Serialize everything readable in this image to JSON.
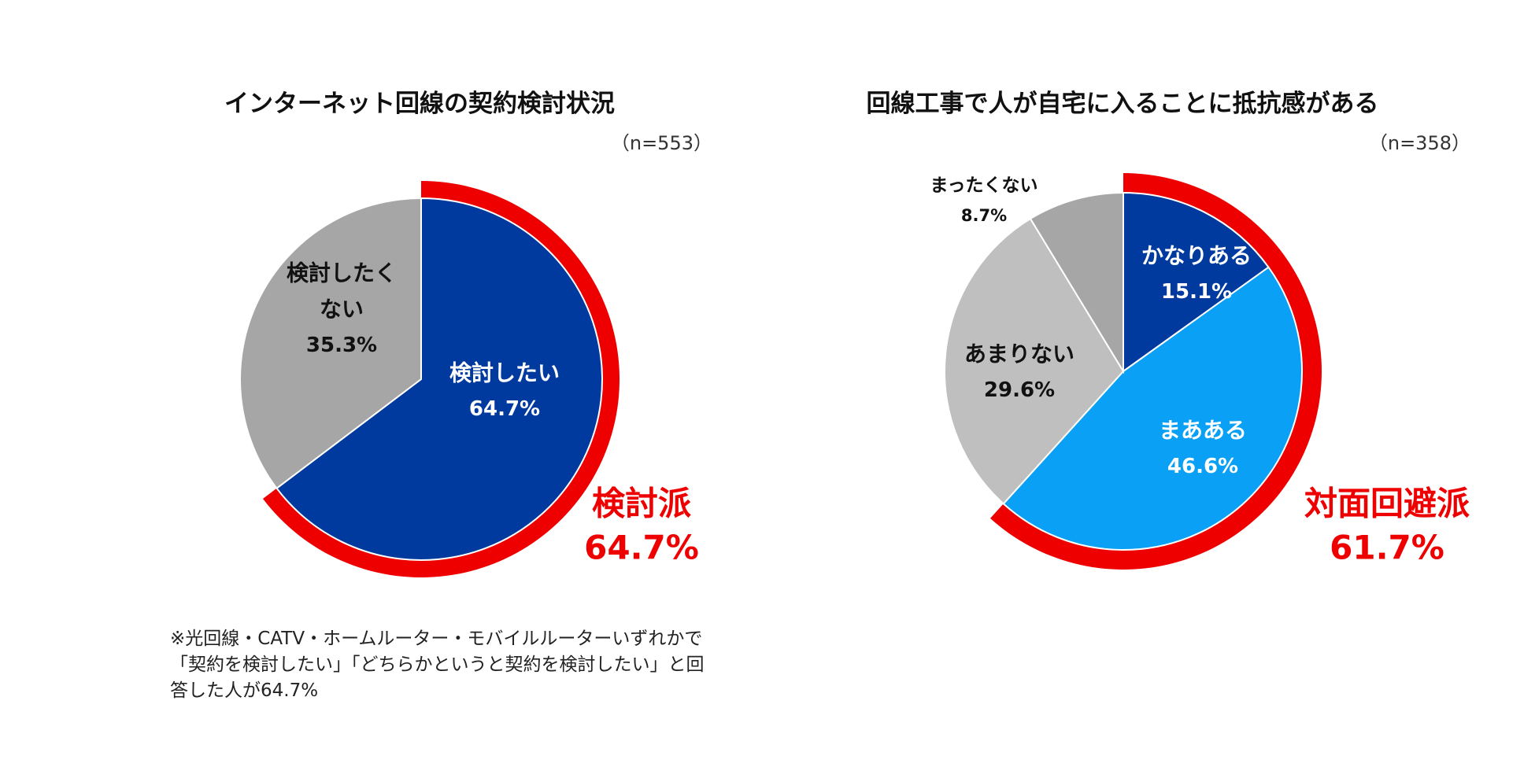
{
  "chart_data": [
    {
      "type": "pie",
      "title": "インターネット回線の契約検討状況",
      "sample_label": "（n=553）",
      "slices": [
        {
          "label_lines": [
            "検討したい"
          ],
          "value": 64.7,
          "value_label": "64.7%",
          "color": "#003a9e",
          "text_color": "#ffffff"
        },
        {
          "label_lines": [
            "検討したく",
            "ない"
          ],
          "value": 35.3,
          "value_label": "35.3%",
          "color": "#a6a6a6",
          "text_color": "#111111"
        }
      ],
      "highlight": {
        "label": "検討派",
        "value": 64.7,
        "value_label": "64.7%",
        "color": "#ee0000"
      }
    },
    {
      "type": "pie",
      "title": "回線工事で人が自宅に入ることに抵抗感がある",
      "sample_label": "（n=358）",
      "slices": [
        {
          "label_lines": [
            "かなりある"
          ],
          "value": 15.1,
          "value_label": "15.1%",
          "color": "#003a9e",
          "text_color": "#ffffff"
        },
        {
          "label_lines": [
            "まあある"
          ],
          "value": 46.6,
          "value_label": "46.6%",
          "color": "#0aa0f5",
          "text_color": "#ffffff"
        },
        {
          "label_lines": [
            "あまりない"
          ],
          "value": 29.6,
          "value_label": "29.6%",
          "color": "#bfbfbf",
          "text_color": "#111111"
        },
        {
          "label_lines": [
            "まったくない"
          ],
          "value": 8.7,
          "value_label": "8.7%",
          "color": "#a6a6a6",
          "text_color": "#111111"
        }
      ],
      "highlight": {
        "label": "対面回避派",
        "value": 61.7,
        "value_label": "61.7%",
        "color": "#ee0000"
      }
    }
  ],
  "footnote": "※光回線・CATV・ホームルーター・モバイルルーターいずれかで「契約を検討したい」「どちらかというと契約を検討したい」と回答した人が64.7%"
}
